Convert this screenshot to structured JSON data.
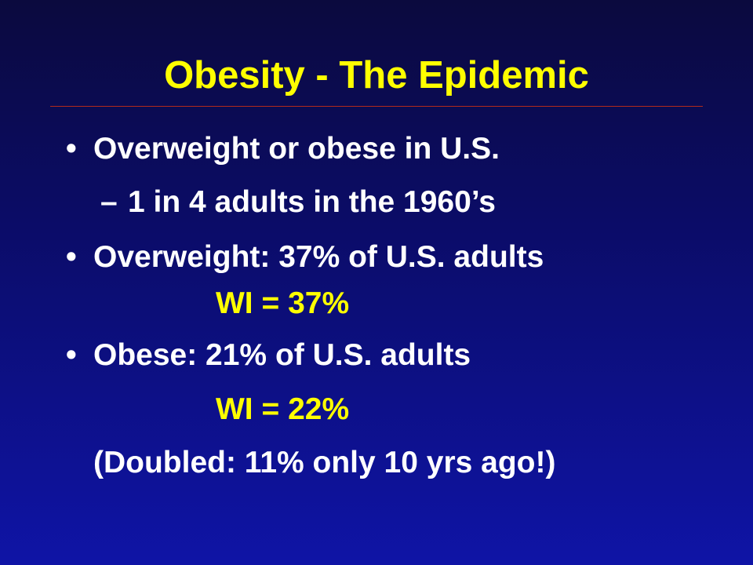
{
  "title": "Obesity - The Epidemic",
  "bullet_glyph": "•",
  "items": [
    {
      "text": "Overweight or obese in U.S.",
      "subitems": [
        {
          "marker": "–",
          "text": "1 in 4 adults in the 1960’s"
        }
      ]
    },
    {
      "text": "Overweight:  37% of U.S. adults",
      "note": "WI = 37%"
    },
    {
      "text": "Obese:  21% of U.S. adults",
      "note": "WI = 22%",
      "extra": "(Doubled: 11% only 10 yrs ago!)"
    }
  ],
  "colors": {
    "title": "#ffff00",
    "body_text": "#ffffff",
    "highlight": "#ffff00",
    "rule": "#b22a1c",
    "background_top": "#0b0a3e",
    "background_bottom": "#0f14a6"
  }
}
